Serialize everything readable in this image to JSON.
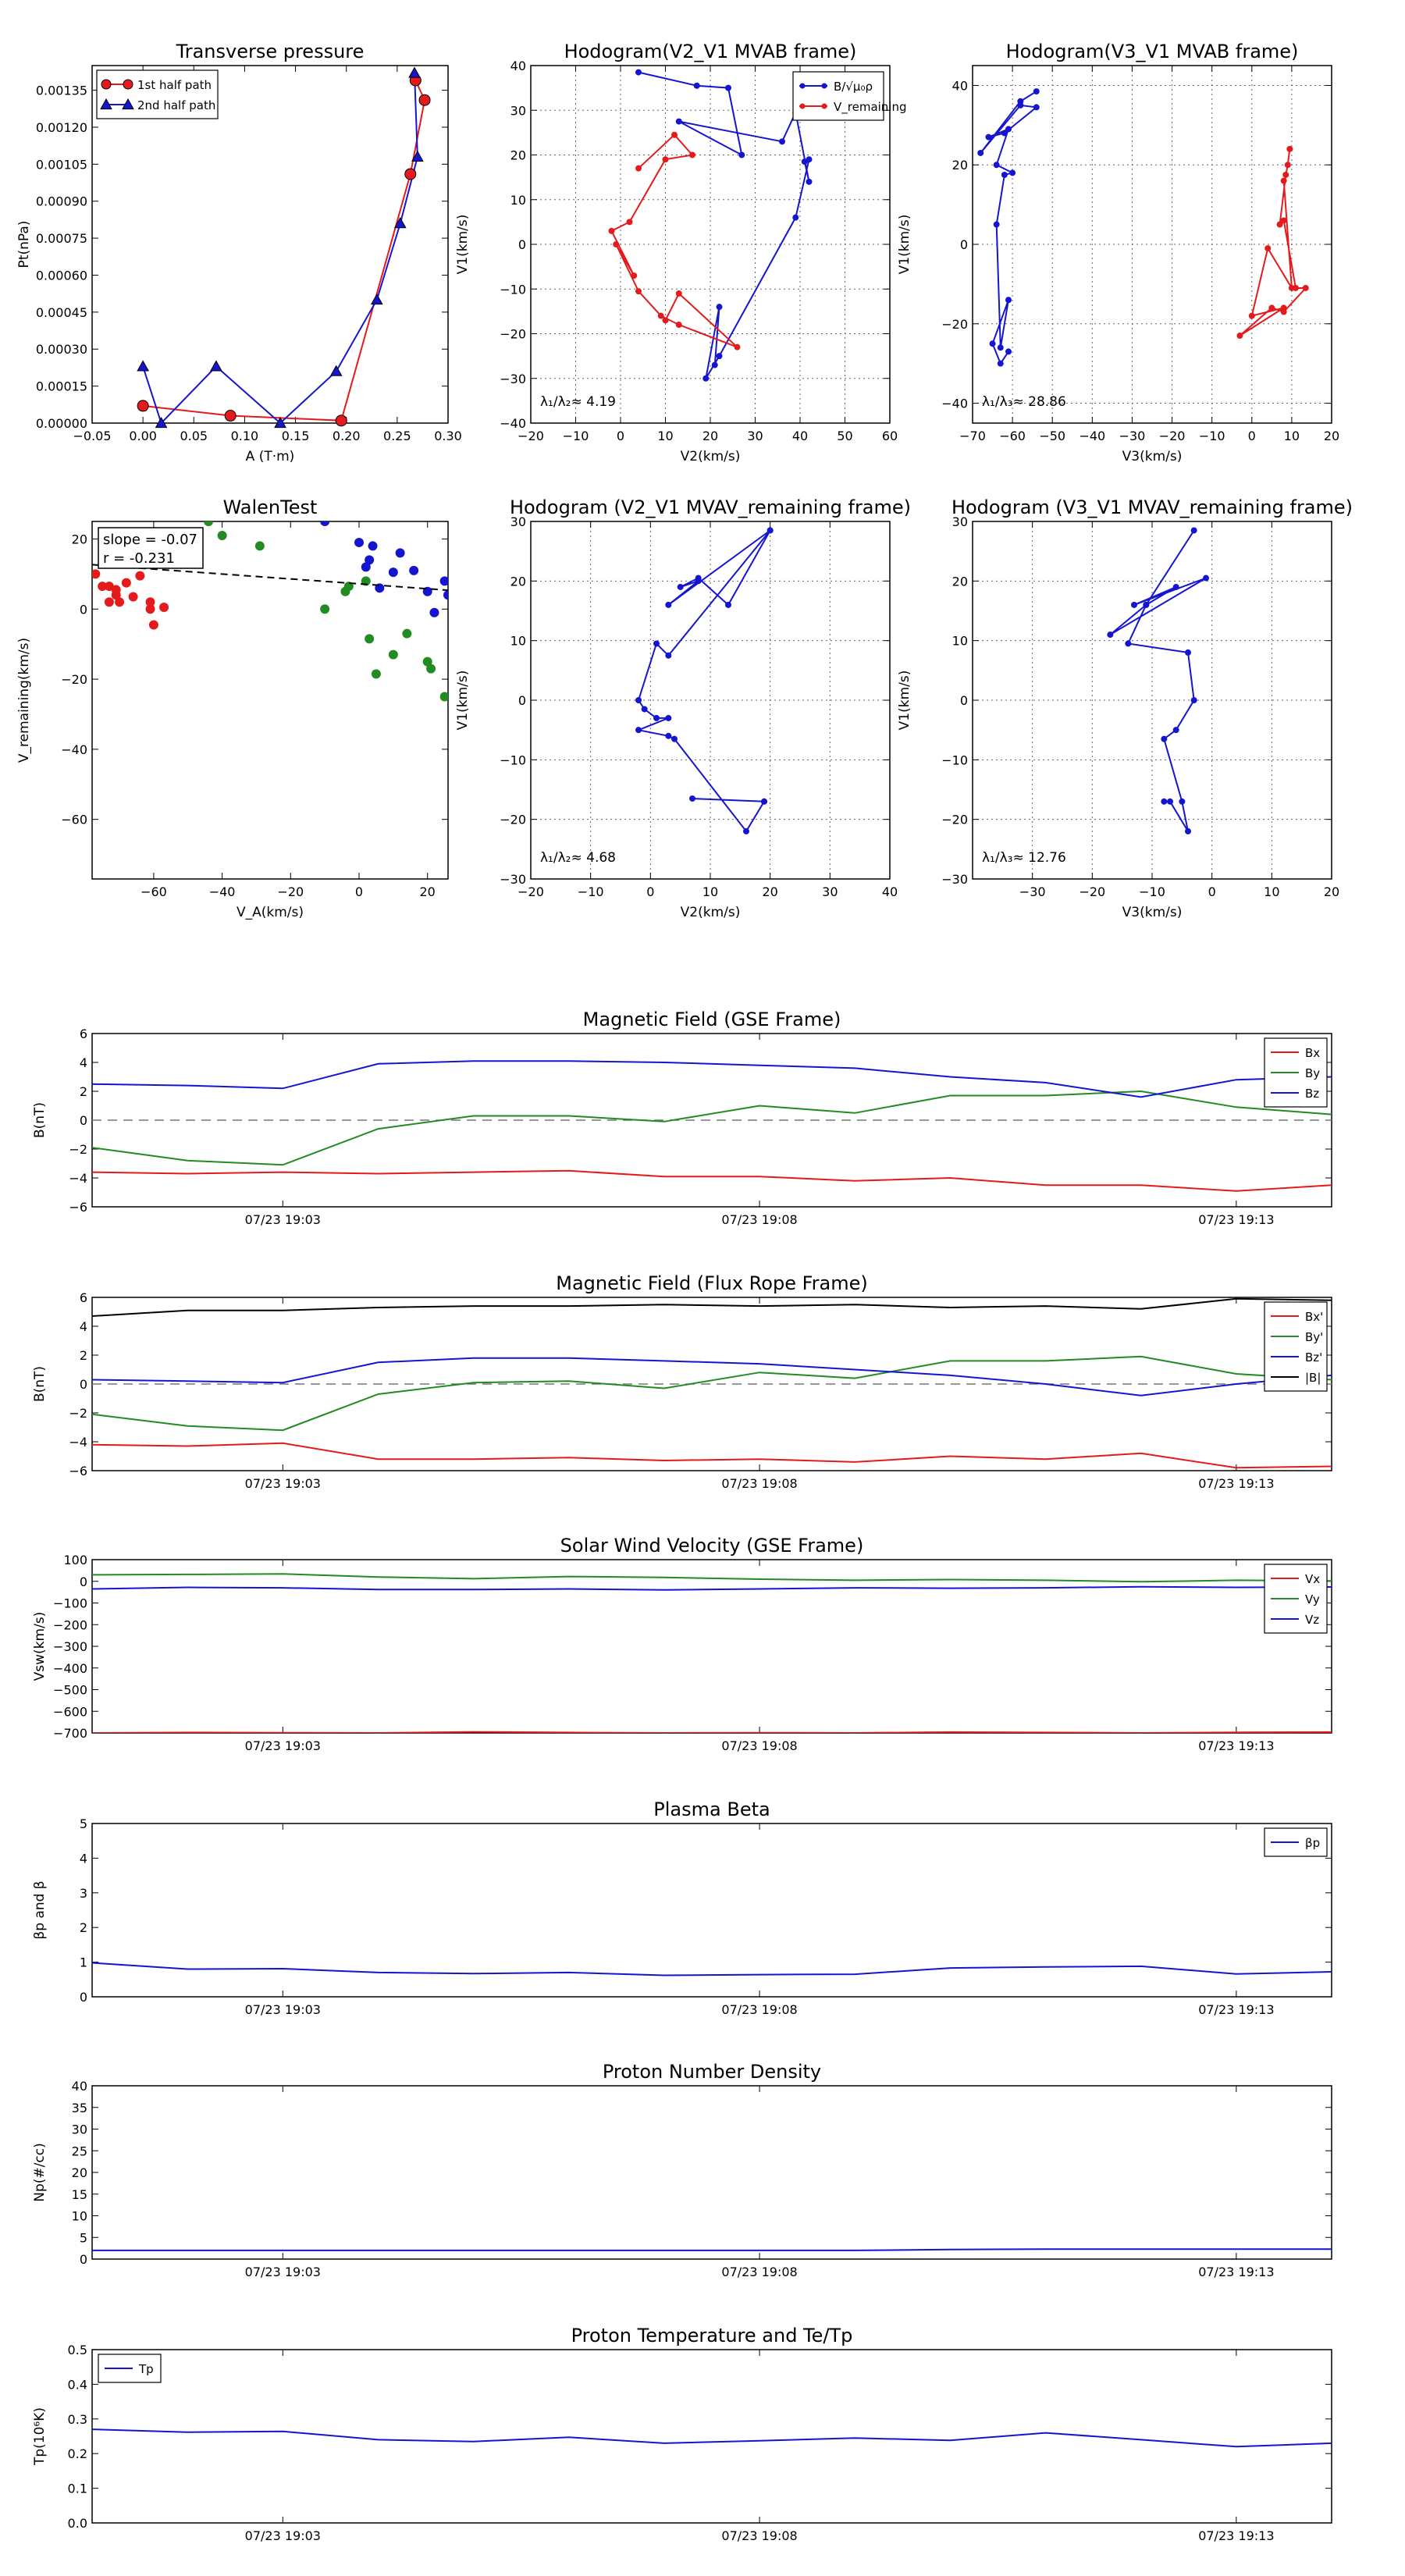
{
  "colors": {
    "red": "#e41a1c",
    "green": "#228b22",
    "blue": "#1515d0",
    "black": "#000000",
    "grid": "#666666"
  },
  "chart_data": [
    {
      "id": "pt",
      "type": "line",
      "title": "Transverse pressure",
      "xlabel": "A (T·m)",
      "ylabel": "Pt(nPa)",
      "xlim": [
        -0.05,
        0.3
      ],
      "ylim": [
        0,
        0.00145
      ],
      "xticks": [
        -0.05,
        0.0,
        0.05,
        0.1,
        0.15,
        0.2,
        0.25,
        0.3
      ],
      "xtick_labels": [
        "−0.05",
        "0.00",
        "0.05",
        "0.10",
        "0.15",
        "0.20",
        "0.25",
        "0.30"
      ],
      "yticks": [
        0,
        0.00015,
        0.0003,
        0.00045,
        0.0006,
        0.00075,
        0.0009,
        0.00105,
        0.0012,
        0.00135
      ],
      "ytick_labels": [
        "0.00000",
        "0.00015",
        "0.00030",
        "0.00045",
        "0.00060",
        "0.00075",
        "0.00090",
        "0.00105",
        "0.00120",
        "0.00135"
      ],
      "grid": false,
      "legend": "top-left",
      "series": [
        {
          "name": "1st half path",
          "color": "#e41a1c",
          "marker": "circle",
          "x": [
            0.268,
            0.277,
            0.263,
            0.195,
            0.086,
            0.0
          ],
          "y": [
            0.00139,
            0.00131,
            0.00101,
            1e-05,
            3e-05,
            7e-05
          ]
        },
        {
          "name": "2nd half path",
          "color": "#1515d0",
          "marker": "triangle",
          "x": [
            0.0,
            0.018,
            0.072,
            0.135,
            0.19,
            0.23,
            0.253,
            0.27,
            0.267
          ],
          "y": [
            0.00023,
            0.0,
            0.00023,
            0.0,
            0.00021,
            0.0005,
            0.00081,
            0.00108,
            0.00142
          ]
        }
      ]
    },
    {
      "id": "h1",
      "type": "line",
      "title": "Hodogram(V2_V1 MVAB frame)",
      "xlabel": "V2(km/s)",
      "ylabel": "V1(km/s)",
      "xlim": [
        -20,
        60
      ],
      "ylim": [
        -40,
        40
      ],
      "xticks": [
        -20,
        -10,
        0,
        10,
        20,
        30,
        40,
        50,
        60
      ],
      "yticks": [
        -40,
        -30,
        -20,
        -10,
        0,
        10,
        20,
        30,
        40
      ],
      "grid": true,
      "legend": "top-right",
      "annotation": "λ₁/λ₂≈ 4.19",
      "series": [
        {
          "name": "B/√μ₀ρ",
          "color": "#1515d0",
          "x": [
            4,
            17,
            24,
            27,
            13
          ],
          "y": [
            38.5,
            35.5,
            35,
            20,
            27.5
          ]
        },
        {
          "name": "V_remaining",
          "color": "#e41a1c",
          "x": [
            4,
            12,
            16,
            10
          ],
          "y": [
            17,
            24.5,
            20,
            19
          ]
        }
      ],
      "blue_path": {
        "x": [
          4,
          17,
          24,
          27,
          13,
          36,
          39,
          42,
          41,
          42,
          39,
          22,
          19,
          22,
          21
        ],
        "y": [
          38.5,
          35.5,
          35,
          20,
          27.5,
          23,
          29.5,
          14,
          18.5,
          19,
          6,
          -25,
          -30,
          -14,
          -27
        ]
      },
      "red_path": {
        "x": [
          4,
          12,
          16,
          10,
          2,
          -2,
          3,
          -1,
          4,
          9,
          13,
          26,
          13,
          10
        ],
        "y": [
          17,
          24.5,
          20,
          19,
          5,
          3,
          -7,
          0,
          -10.5,
          -16,
          -18,
          -23,
          -11,
          -17
        ]
      }
    },
    {
      "id": "h2",
      "type": "line",
      "title": "Hodogram(V3_V1 MVAB frame)",
      "xlabel": "V3(km/s)",
      "ylabel": "V1(km/s)",
      "xlim": [
        -70,
        20
      ],
      "ylim": [
        -45,
        45
      ],
      "xticks": [
        -70,
        -60,
        -50,
        -40,
        -30,
        -20,
        -10,
        0,
        10,
        20
      ],
      "yticks": [
        -40,
        -20,
        0,
        20,
        40
      ],
      "grid": true,
      "legend": "top-right",
      "annotation": "λ₁/λ₃≈ 28.86",
      "blue_path": {
        "x": [
          -54,
          -58,
          -68,
          -58,
          -54,
          -62,
          -66,
          -61,
          -64,
          -60,
          -62,
          -64,
          -63,
          -61,
          -65,
          -63,
          -61
        ],
        "y": [
          38.5,
          36,
          23,
          35,
          34.5,
          28,
          27,
          29,
          20,
          18,
          17.5,
          5,
          -26,
          -14,
          -25,
          -30,
          -27
        ]
      },
      "red_path": {
        "x": [
          9.5,
          9,
          8.5,
          7,
          8,
          11,
          13.5,
          8,
          5,
          -3,
          8,
          0,
          4,
          10,
          8
        ],
        "y": [
          24,
          20,
          17.5,
          5,
          6,
          -11,
          -11,
          -17,
          -16,
          -23,
          -16,
          -18,
          -1,
          -11,
          16
        ]
      }
    },
    {
      "id": "walen",
      "type": "scatter",
      "title": "WalenTest",
      "xlabel": "V_A(km/s)",
      "ylabel": "V_remaining(km/s)",
      "xlim": [
        -78,
        26
      ],
      "ylim": [
        -77,
        25
      ],
      "xticks": [
        -60,
        -40,
        -20,
        0,
        20
      ],
      "yticks": [
        -60,
        -40,
        -20,
        0,
        20
      ],
      "grid": false,
      "annotation_lines": [
        "slope = -0.07",
        "r = -0.231"
      ],
      "fit": {
        "slope": -0.07,
        "intercept": 7.2
      },
      "groups": [
        {
          "color": "#e41a1c",
          "x": [
            -77,
            -75,
            -73,
            -71,
            -69,
            -71,
            -68,
            -66,
            -73,
            -70,
            -64,
            -61,
            -57,
            -61,
            -60
          ],
          "y": [
            10,
            6.5,
            6.5,
            5.5,
            13,
            4,
            7.5,
            3.5,
            2,
            2,
            9.5,
            2,
            0.5,
            0,
            -4.5
          ]
        },
        {
          "color": "#228b22",
          "x": [
            -44,
            -40,
            -29,
            -10,
            -4,
            -3,
            2,
            3,
            5,
            10,
            14,
            20,
            21,
            25
          ],
          "y": [
            25,
            21,
            18,
            0,
            5,
            6.5,
            8,
            -8.5,
            -18.5,
            -13,
            -7,
            -15,
            -17,
            -25
          ]
        },
        {
          "color": "#1515d0",
          "x": [
            -10,
            0,
            2,
            3,
            4,
            6,
            10,
            12,
            16,
            20,
            22,
            25,
            26
          ],
          "y": [
            25,
            19,
            12,
            14,
            18,
            6,
            10.5,
            16,
            11,
            5,
            -1,
            8,
            4
          ]
        }
      ]
    },
    {
      "id": "h3",
      "type": "line",
      "title": "Hodogram (V2_V1 MVAV_remaining frame)",
      "xlabel": "V2(km/s)",
      "ylabel": "V1(km/s)",
      "xlim": [
        -20,
        40
      ],
      "ylim": [
        -30,
        30
      ],
      "xticks": [
        -20,
        -10,
        0,
        10,
        20,
        30,
        40
      ],
      "yticks": [
        -30,
        -20,
        -10,
        0,
        10,
        20,
        30
      ],
      "grid": true,
      "annotation": "λ₁/λ₂≈ 4.68",
      "blue_path": {
        "x": [
          20,
          3,
          8,
          5,
          8,
          13,
          20,
          3,
          1,
          -2,
          -1,
          1,
          3,
          -2,
          3,
          4,
          16,
          19,
          7,
          19
        ],
        "y": [
          28.5,
          16,
          20,
          19,
          20.5,
          16,
          28.5,
          7.5,
          9.5,
          0,
          -1.5,
          -3,
          -3,
          -5,
          -6,
          -6.5,
          -22,
          -17,
          -16.5,
          -17
        ]
      }
    },
    {
      "id": "h4",
      "type": "line",
      "title": "Hodogram (V3_V1 MVAV_remaining frame)",
      "xlabel": "V3(km/s)",
      "ylabel": "V1(km/s)",
      "xlim": [
        -40,
        20
      ],
      "ylim": [
        -30,
        30
      ],
      "xticks": [
        -30,
        -20,
        -10,
        0,
        10,
        20
      ],
      "yticks": [
        -30,
        -20,
        -10,
        0,
        10,
        20,
        30
      ],
      "grid": true,
      "annotation": "λ₁/λ₃≈ 12.76",
      "blue_path": {
        "x": [
          -3,
          -11,
          -6,
          -13,
          -1,
          -17,
          -11,
          -14,
          -4,
          -3,
          -6,
          -8,
          -5,
          -4,
          -7,
          -8
        ],
        "y": [
          28.5,
          16,
          19,
          16,
          20.5,
          11,
          16,
          9.5,
          8,
          0,
          -5,
          -6.5,
          -17,
          -22,
          -17,
          -17
        ]
      }
    },
    {
      "id": "bgse",
      "type": "line",
      "title": "Magnetic Field (GSE Frame)",
      "xlabel": "",
      "ylabel": "B(nT)",
      "xlim": [
        0,
        13
      ],
      "ylim": [
        -6,
        6
      ],
      "yticks": [
        -6,
        -4,
        -2,
        0,
        2,
        4,
        6
      ],
      "xticks": [
        2,
        7,
        12
      ],
      "xtick_labels": [
        "07/23 19:03",
        "07/23 19:08",
        "07/23 19:13"
      ],
      "zero_line": true,
      "legend": "top-right",
      "x": [
        0,
        1,
        2,
        3,
        4,
        5,
        6,
        7,
        8,
        9,
        10,
        11,
        12,
        13
      ],
      "series": [
        {
          "name": "Bx",
          "color": "#e41a1c",
          "values": [
            -3.6,
            -3.7,
            -3.6,
            -3.7,
            -3.6,
            -3.5,
            -3.9,
            -3.9,
            -4.2,
            -4.0,
            -4.5,
            -4.5,
            -4.9,
            -4.5
          ]
        },
        {
          "name": "By",
          "color": "#228b22",
          "values": [
            -1.9,
            -2.8,
            -3.1,
            -0.6,
            0.3,
            0.3,
            -0.1,
            1.0,
            0.5,
            1.7,
            1.7,
            2.0,
            0.9,
            0.4
          ]
        },
        {
          "name": "Bz",
          "color": "#1515d0",
          "values": [
            2.5,
            2.4,
            2.2,
            3.9,
            4.1,
            4.1,
            4.0,
            3.8,
            3.6,
            3.0,
            2.6,
            1.6,
            2.8,
            3.0
          ]
        }
      ]
    },
    {
      "id": "bfr",
      "type": "line",
      "title": "Magnetic Field (Flux Rope Frame)",
      "xlabel": "",
      "ylabel": "B(nT)",
      "xlim": [
        0,
        13
      ],
      "ylim": [
        -6,
        6
      ],
      "yticks": [
        -6,
        -4,
        -2,
        0,
        2,
        4,
        6
      ],
      "xticks": [
        2,
        7,
        12
      ],
      "xtick_labels": [
        "07/23 19:03",
        "07/23 19:08",
        "07/23 19:13"
      ],
      "zero_line": true,
      "legend": "top-right",
      "x": [
        0,
        1,
        2,
        3,
        4,
        5,
        6,
        7,
        8,
        9,
        10,
        11,
        12,
        13
      ],
      "series": [
        {
          "name": "Bx'",
          "color": "#e41a1c",
          "values": [
            -4.2,
            -4.3,
            -4.1,
            -5.2,
            -5.2,
            -5.1,
            -5.3,
            -5.2,
            -5.4,
            -5.0,
            -5.2,
            -4.8,
            -5.8,
            -5.7
          ]
        },
        {
          "name": "By'",
          "color": "#228b22",
          "values": [
            -2.1,
            -2.9,
            -3.2,
            -0.7,
            0.1,
            0.2,
            -0.3,
            0.8,
            0.4,
            1.6,
            1.6,
            1.9,
            0.7,
            0.3
          ]
        },
        {
          "name": "Bz'",
          "color": "#1515d0",
          "values": [
            0.3,
            0.2,
            0.1,
            1.5,
            1.8,
            1.8,
            1.6,
            1.4,
            1.0,
            0.6,
            0.0,
            -0.8,
            0.0,
            0.6
          ]
        },
        {
          "name": "|B|",
          "color": "#000000",
          "values": [
            4.7,
            5.1,
            5.1,
            5.3,
            5.4,
            5.4,
            5.5,
            5.4,
            5.5,
            5.3,
            5.4,
            5.2,
            5.9,
            5.8
          ]
        }
      ]
    },
    {
      "id": "vsw",
      "type": "line",
      "title": "Solar Wind Velocity (GSE Frame)",
      "xlabel": "",
      "ylabel": "Vsw(km/s)",
      "xlim": [
        0,
        13
      ],
      "ylim": [
        -700,
        100
      ],
      "yticks": [
        -700,
        -600,
        -500,
        -400,
        -300,
        -200,
        -100,
        0,
        100
      ],
      "ytick_labels": [
        "−700",
        "−600",
        "−500",
        "−400",
        "−300",
        "−200",
        "−100",
        "0",
        "100"
      ],
      "xticks": [
        2,
        7,
        12
      ],
      "xtick_labels": [
        "07/23 19:03",
        "07/23 19:08",
        "07/23 19:13"
      ],
      "legend": "top-right",
      "x": [
        0,
        1,
        2,
        3,
        4,
        5,
        6,
        7,
        8,
        9,
        10,
        11,
        12,
        13
      ],
      "series": [
        {
          "name": "Vx",
          "color": "#e41a1c",
          "values": [
            -700,
            -698,
            -699,
            -700,
            -695,
            -698,
            -700,
            -699,
            -700,
            -696,
            -698,
            -700,
            -697,
            -696
          ]
        },
        {
          "name": "Vy",
          "color": "#228b22",
          "values": [
            30,
            32,
            34,
            20,
            12,
            22,
            18,
            10,
            5,
            8,
            5,
            -2,
            5,
            2
          ]
        },
        {
          "name": "Vz",
          "color": "#1515d0",
          "values": [
            -35,
            -28,
            -30,
            -38,
            -38,
            -35,
            -40,
            -35,
            -30,
            -32,
            -30,
            -25,
            -28,
            -26
          ]
        }
      ]
    },
    {
      "id": "beta",
      "type": "line",
      "title": "Plasma Beta",
      "xlabel": "",
      "ylabel": "βp and β",
      "xlim": [
        0,
        13
      ],
      "ylim": [
        0,
        5
      ],
      "yticks": [
        0,
        1,
        2,
        3,
        4,
        5
      ],
      "xticks": [
        2,
        7,
        12
      ],
      "xtick_labels": [
        "07/23 19:03",
        "07/23 19:08",
        "07/23 19:13"
      ],
      "legend": "top-right",
      "x": [
        0,
        1,
        2,
        3,
        4,
        5,
        6,
        7,
        8,
        9,
        10,
        11,
        12,
        13
      ],
      "series": [
        {
          "name": "βp",
          "color": "#1515d0",
          "values": [
            0.98,
            0.8,
            0.81,
            0.7,
            0.67,
            0.7,
            0.62,
            0.64,
            0.65,
            0.83,
            0.86,
            0.88,
            0.66,
            0.72
          ]
        }
      ]
    },
    {
      "id": "np",
      "type": "line",
      "title": "Proton Number Density",
      "xlabel": "",
      "ylabel": "Np(#/cc)",
      "xlim": [
        0,
        13
      ],
      "ylim": [
        0,
        40
      ],
      "yticks": [
        0,
        5,
        10,
        15,
        20,
        25,
        30,
        35,
        40
      ],
      "xticks": [
        2,
        7,
        12
      ],
      "xtick_labels": [
        "07/23 19:03",
        "07/23 19:08",
        "07/23 19:13"
      ],
      "x": [
        0,
        1,
        2,
        3,
        4,
        5,
        6,
        7,
        8,
        9,
        10,
        11,
        12,
        13
      ],
      "series": [
        {
          "color": "#1515d0",
          "values": [
            2.0,
            2.0,
            2.0,
            2.0,
            2.0,
            2.0,
            2.0,
            2.0,
            2.0,
            2.2,
            2.3,
            2.3,
            2.3,
            2.3
          ]
        }
      ]
    },
    {
      "id": "tp",
      "type": "line",
      "title": "Proton Temperature and Te/Tp",
      "xlabel": "",
      "ylabel": "Tp(10⁶K)",
      "xlim": [
        0,
        13
      ],
      "ylim": [
        0,
        0.5
      ],
      "yticks": [
        0,
        0.1,
        0.2,
        0.3,
        0.4,
        0.5
      ],
      "ytick_labels": [
        "0.0",
        "0.1",
        "0.2",
        "0.3",
        "0.4",
        "0.5"
      ],
      "xticks": [
        2,
        7,
        12
      ],
      "xtick_labels": [
        "07/23 19:03",
        "07/23 19:08",
        "07/23 19:13"
      ],
      "legend": "top-left",
      "x": [
        0,
        1,
        2,
        3,
        4,
        5,
        6,
        7,
        8,
        9,
        10,
        11,
        12,
        13
      ],
      "series": [
        {
          "name": "Tp",
          "color": "#1515d0",
          "values": [
            0.27,
            0.262,
            0.264,
            0.24,
            0.235,
            0.247,
            0.23,
            0.237,
            0.245,
            0.238,
            0.26,
            0.24,
            0.22,
            0.23
          ]
        }
      ]
    }
  ]
}
